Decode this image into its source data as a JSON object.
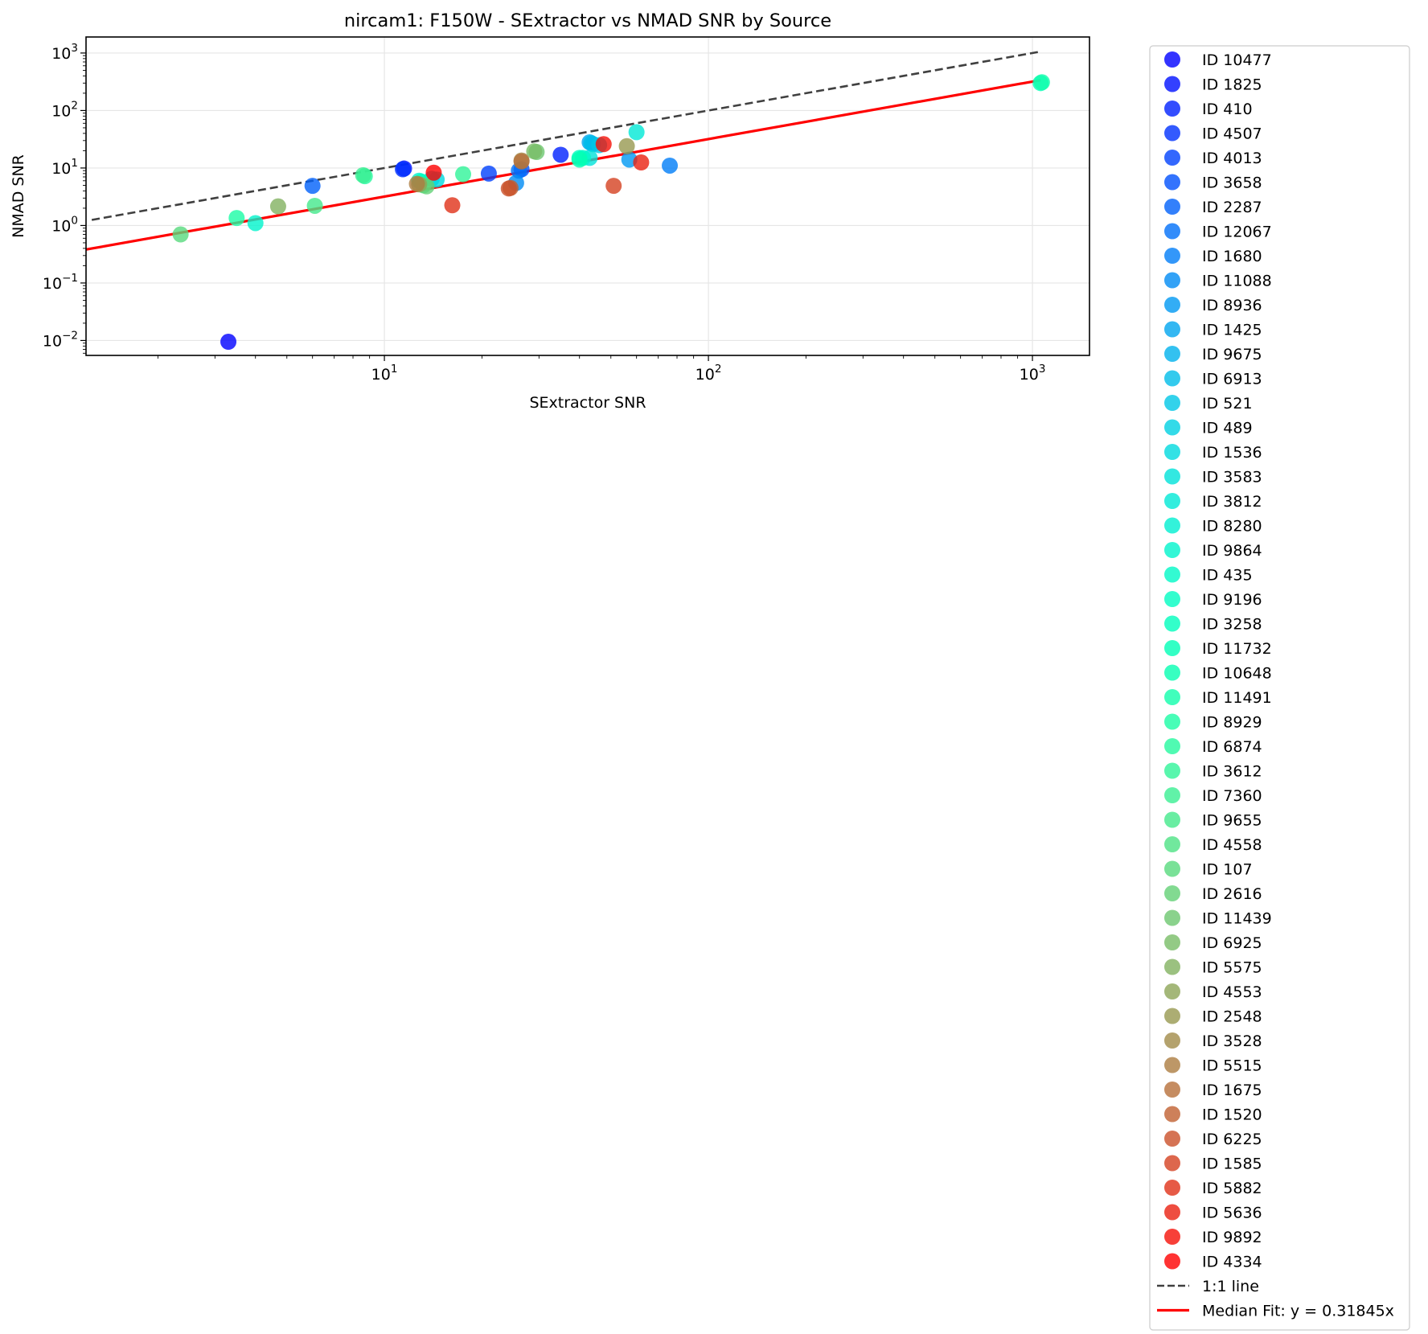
{
  "chart_data": {
    "type": "scatter",
    "title": "nircam1: F150W - SExtractor vs NMAD SNR by Source",
    "xlabel": "SExtractor SNR",
    "ylabel": "NMAD SNR",
    "xscale": "log",
    "yscale": "log",
    "xlim": [
      1.2,
      1500
    ],
    "ylim": [
      0.0055,
      1900
    ],
    "x_ticks": [
      {
        "value": 10,
        "label": "10^1"
      },
      {
        "value": 100,
        "label": "10^2"
      },
      {
        "value": 1000,
        "label": "10^3"
      }
    ],
    "y_ticks": [
      {
        "value": 0.01,
        "label": "10^−2"
      },
      {
        "value": 0.1,
        "label": "10^−1"
      },
      {
        "value": 1,
        "label": "10^0"
      },
      {
        "value": 10,
        "label": "10^1"
      },
      {
        "value": 100,
        "label": "10^2"
      },
      {
        "value": 1000,
        "label": "10^3"
      }
    ],
    "grid": true,
    "legend_position": "outside-right",
    "colormap": "rainbow",
    "points": [
      {
        "id": "ID 10477",
        "x": 3.3,
        "y": 0.0095
      },
      {
        "id": "ID 1825",
        "x": 11.5,
        "y": 9.8
      },
      {
        "id": "ID 410",
        "x": 35,
        "y": 17
      },
      {
        "id": "ID 4507",
        "x": 11.4,
        "y": 9.5
      },
      {
        "id": "ID 4013",
        "x": 21,
        "y": 8
      },
      {
        "id": "ID 3658",
        "x": 26.5,
        "y": 9.5
      },
      {
        "id": "ID 2287",
        "x": 6.0,
        "y": 4.9
      },
      {
        "id": "ID 12067",
        "x": 26,
        "y": 9
      },
      {
        "id": "ID 1680",
        "x": 76,
        "y": 11
      },
      {
        "id": "ID 11088",
        "x": 25.5,
        "y": 5.5
      },
      {
        "id": "ID 8936",
        "x": 57,
        "y": 14
      },
      {
        "id": "ID 1425",
        "x": 43,
        "y": 28
      },
      {
        "id": "ID 9675",
        "x": 44,
        "y": 26
      },
      {
        "id": "ID 6913",
        "x": 43.5,
        "y": 27
      },
      {
        "id": "ID 521",
        "x": 46,
        "y": 25
      },
      {
        "id": "ID 489",
        "x": 14,
        "y": 6.5
      },
      {
        "id": "ID 1536",
        "x": 14.5,
        "y": 6.3
      },
      {
        "id": "ID 3583",
        "x": 43,
        "y": 15
      },
      {
        "id": "ID 3812",
        "x": 60,
        "y": 42
      },
      {
        "id": "ID 8280",
        "x": 12.8,
        "y": 6.0
      },
      {
        "id": "ID 9864",
        "x": 4.0,
        "y": 1.1
      },
      {
        "id": "ID 435",
        "x": 41,
        "y": 15
      },
      {
        "id": "ID 9196",
        "x": 40,
        "y": 15
      },
      {
        "id": "ID 3258",
        "x": 13.0,
        "y": 5.8
      },
      {
        "id": "ID 11732",
        "x": 1060,
        "y": 300
      },
      {
        "id": "ID 10648",
        "x": 40,
        "y": 14
      },
      {
        "id": "ID 11491",
        "x": 1070,
        "y": 310
      },
      {
        "id": "ID 8929",
        "x": 3.5,
        "y": 1.35
      },
      {
        "id": "ID 6874",
        "x": 8.7,
        "y": 7.2
      },
      {
        "id": "ID 3612",
        "x": 17.5,
        "y": 7.8
      },
      {
        "id": "ID 7360",
        "x": 8.6,
        "y": 7.5
      },
      {
        "id": "ID 9655",
        "x": 6.1,
        "y": 2.2
      },
      {
        "id": "ID 4558",
        "x": 13.2,
        "y": 5.0
      },
      {
        "id": "ID 107",
        "x": 2.35,
        "y": 0.7
      },
      {
        "id": "ID 2616",
        "x": 13.5,
        "y": 4.8
      },
      {
        "id": "ID 11439",
        "x": 29.5,
        "y": 19
      },
      {
        "id": "ID 6925",
        "x": 29,
        "y": 19.5
      },
      {
        "id": "ID 5575",
        "x": 4.7,
        "y": 2.15
      },
      {
        "id": "ID 4553",
        "x": 12.8,
        "y": 5.2
      },
      {
        "id": "ID 2548",
        "x": 56,
        "y": 24
      },
      {
        "id": "ID 3528",
        "x": 26.5,
        "y": 13.5
      },
      {
        "id": "ID 5515",
        "x": 12.6,
        "y": 5.3
      },
      {
        "id": "ID 1675",
        "x": 26.5,
        "y": 13
      },
      {
        "id": "ID 1520",
        "x": 24.5,
        "y": 4.5
      },
      {
        "id": "ID 6225",
        "x": 24.2,
        "y": 4.4
      },
      {
        "id": "ID 1585",
        "x": 51,
        "y": 4.9
      },
      {
        "id": "ID 5882",
        "x": 16.2,
        "y": 2.25
      },
      {
        "id": "ID 5636",
        "x": 62,
        "y": 12.5
      },
      {
        "id": "ID 9892",
        "x": 47.5,
        "y": 26
      },
      {
        "id": "ID 4334",
        "x": 14.2,
        "y": 8.3
      }
    ],
    "lines": [
      {
        "name": "1:1 line",
        "slope": 1,
        "style": "dashed",
        "color": "#404040",
        "x_range": [
          1.25,
          1060
        ]
      },
      {
        "name": "Median Fit: y = 0.31845x",
        "slope": 0.31845,
        "style": "solid",
        "color": "#ff0000",
        "x_range": [
          1.05,
          1060
        ]
      }
    ]
  }
}
